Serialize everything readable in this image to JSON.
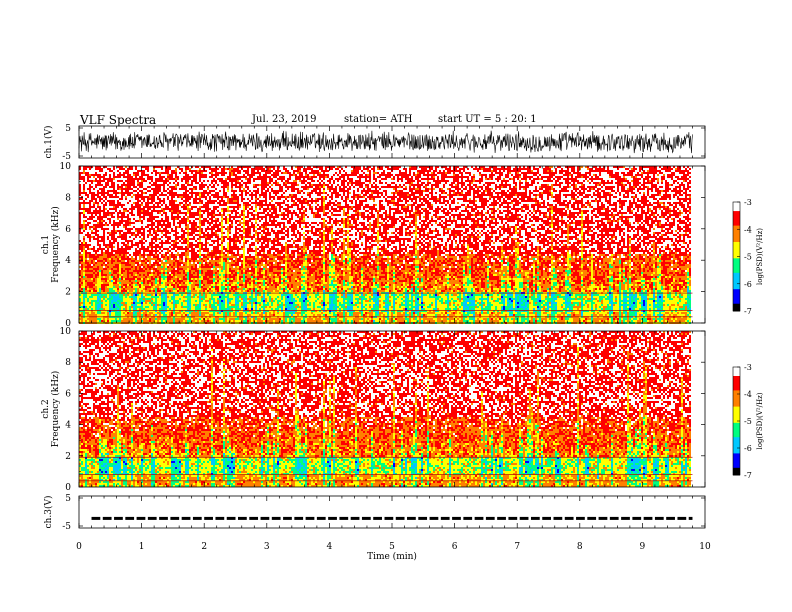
{
  "header": {
    "title": "VLF  Spectra",
    "date": "Jul.  23, 2019",
    "station": "station= ATH",
    "start": "start  UT  =    5  : 20: 1"
  },
  "chart_data": [
    {
      "type": "line",
      "name": "ch1-waveform",
      "ylabel": "ch.1(V)",
      "ylim": [
        -5,
        5
      ],
      "yticks": [
        "5",
        "-5"
      ],
      "xlim": [
        0,
        10
      ],
      "description_of_signal": "dense noisy waveform spanning roughly -4 to 4 V over 0 to 9.8 min"
    },
    {
      "type": "heatmap",
      "name": "ch1-spectrogram",
      "ylabel": "ch.1\nFrequency (kHz)",
      "ylim": [
        0,
        10
      ],
      "yticks": [
        "0",
        "2",
        "4",
        "6",
        "8",
        "10"
      ],
      "xlim": [
        0,
        10
      ],
      "colorbar": {
        "label": "log(PSD)(V²/Hz)",
        "range": [
          -7,
          -3
        ],
        "ticks": [
          "-3",
          "-4",
          "-5",
          "-6",
          "-7"
        ]
      }
    },
    {
      "type": "heatmap",
      "name": "ch2-spectrogram",
      "ylabel": "ch.2\nFrequency (kHz)",
      "ylim": [
        0,
        10
      ],
      "yticks": [
        "0",
        "2",
        "4",
        "6",
        "8",
        "10"
      ],
      "xlim": [
        0,
        10
      ],
      "colorbar": {
        "label": "log(PSD)(V²/Hz)",
        "range": [
          -7,
          -3
        ],
        "ticks": [
          "-3",
          "-4",
          "-5",
          "-6",
          "-7"
        ]
      }
    },
    {
      "type": "line",
      "name": "ch3-waveform",
      "ylabel": "ch.3(V)",
      "ylim": [
        -5,
        5
      ],
      "yticks": [
        "5",
        "-5"
      ],
      "xlim": [
        0,
        10
      ],
      "description_of_signal": "flat dashed line near -2 V from 0 to 9.8 min"
    }
  ],
  "xaxis": {
    "label": "Time  (min)",
    "ticks": [
      "0",
      "1",
      "2",
      "3",
      "4",
      "5",
      "6",
      "7",
      "8",
      "9",
      "10"
    ]
  },
  "colors": {
    "cmap": [
      "#000000",
      "#0000ff",
      "#00c8ff",
      "#00ff80",
      "#ffff00",
      "#ff8000",
      "#ff0000",
      "#ffffff"
    ]
  }
}
